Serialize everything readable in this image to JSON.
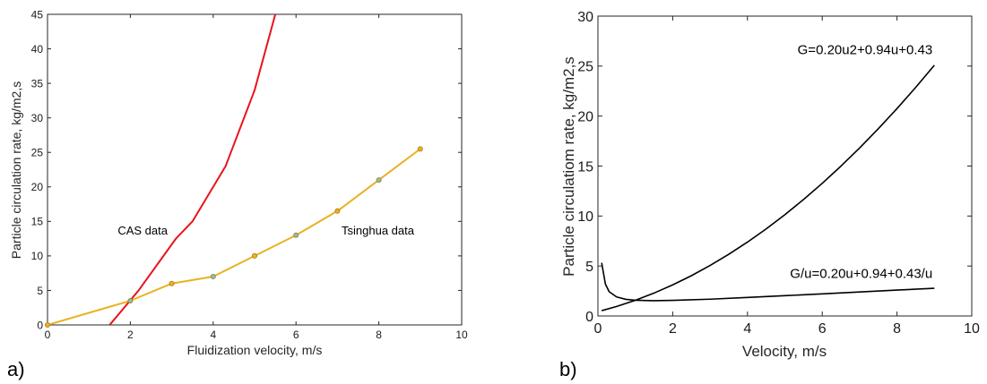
{
  "chart_data": [
    {
      "type": "line",
      "panel_label": "a)",
      "xlabel": "Fluidization velocity, m/s",
      "ylabel": "Particle circulation rate, kg/m2,s",
      "xlim": [
        0,
        10
      ],
      "ylim": [
        0,
        45
      ],
      "xticks": [
        0,
        2,
        4,
        6,
        8,
        10
      ],
      "yticks": [
        0,
        5,
        10,
        15,
        20,
        25,
        30,
        35,
        40,
        45
      ],
      "grid": false,
      "series": [
        {
          "name": "CAS data",
          "color": "#e8141c",
          "markers": false,
          "x": [
            1.5,
            2.2,
            3.1,
            3.5,
            4.3,
            5.0,
            5.5
          ],
          "y": [
            0,
            5,
            12.5,
            15,
            23,
            34,
            45
          ]
        },
        {
          "name": "Tsinghua data",
          "color": "#e8b21f",
          "markers": true,
          "x": [
            0,
            2,
            3,
            4,
            5,
            6,
            7,
            8,
            9
          ],
          "y": [
            0,
            3.5,
            6,
            7,
            10,
            13,
            16.5,
            21,
            25.5
          ]
        }
      ],
      "annotations": [
        {
          "text": "CAS data",
          "x": 2.9,
          "y": 13.1
        },
        {
          "text": "Tsinghua data",
          "x": 7.1,
          "y": 13.1
        }
      ]
    },
    {
      "type": "line",
      "panel_label": "b)",
      "xlabel": "Velocity, m/s",
      "ylabel": "Particle circulatiom rate, kg/m2,s",
      "xlim": [
        0,
        10
      ],
      "ylim": [
        0,
        30
      ],
      "xticks": [
        0,
        2,
        4,
        6,
        8,
        10
      ],
      "yticks": [
        0,
        5,
        10,
        15,
        20,
        25,
        30
      ],
      "grid": false,
      "series": [
        {
          "name": "G=0.20u2+0.94u+0.43",
          "color": "#000000",
          "x": [
            0.1,
            0.5,
            1,
            1.5,
            2,
            2.5,
            3,
            3.5,
            4,
            4.5,
            5,
            5.5,
            6,
            6.5,
            7,
            7.5,
            8,
            8.5,
            9
          ],
          "y": [
            0.53,
            0.95,
            1.57,
            2.29,
            3.11,
            4.03,
            5.05,
            6.17,
            7.39,
            8.71,
            10.13,
            11.65,
            13.27,
            14.99,
            16.81,
            18.73,
            20.75,
            22.87,
            25.09
          ]
        },
        {
          "name": "G/u=0.20u+0.94+0.43/u",
          "color": "#000000",
          "x": [
            0.1,
            0.2,
            0.3,
            0.5,
            0.75,
            1,
            1.5,
            2,
            3,
            4,
            5,
            6,
            7,
            8,
            9
          ],
          "y": [
            5.32,
            3.19,
            2.43,
            1.9,
            1.66,
            1.57,
            1.53,
            1.56,
            1.68,
            1.85,
            2.03,
            2.21,
            2.4,
            2.59,
            2.77
          ]
        }
      ],
      "annotations": [
        {
          "text": "G=0.20u2+0.94u+0.43",
          "x": 8.95,
          "y": 26.2
        },
        {
          "text": "G/u=0.20u+0.94+0.43/u",
          "x": 8.95,
          "y": 3.8
        }
      ]
    }
  ]
}
